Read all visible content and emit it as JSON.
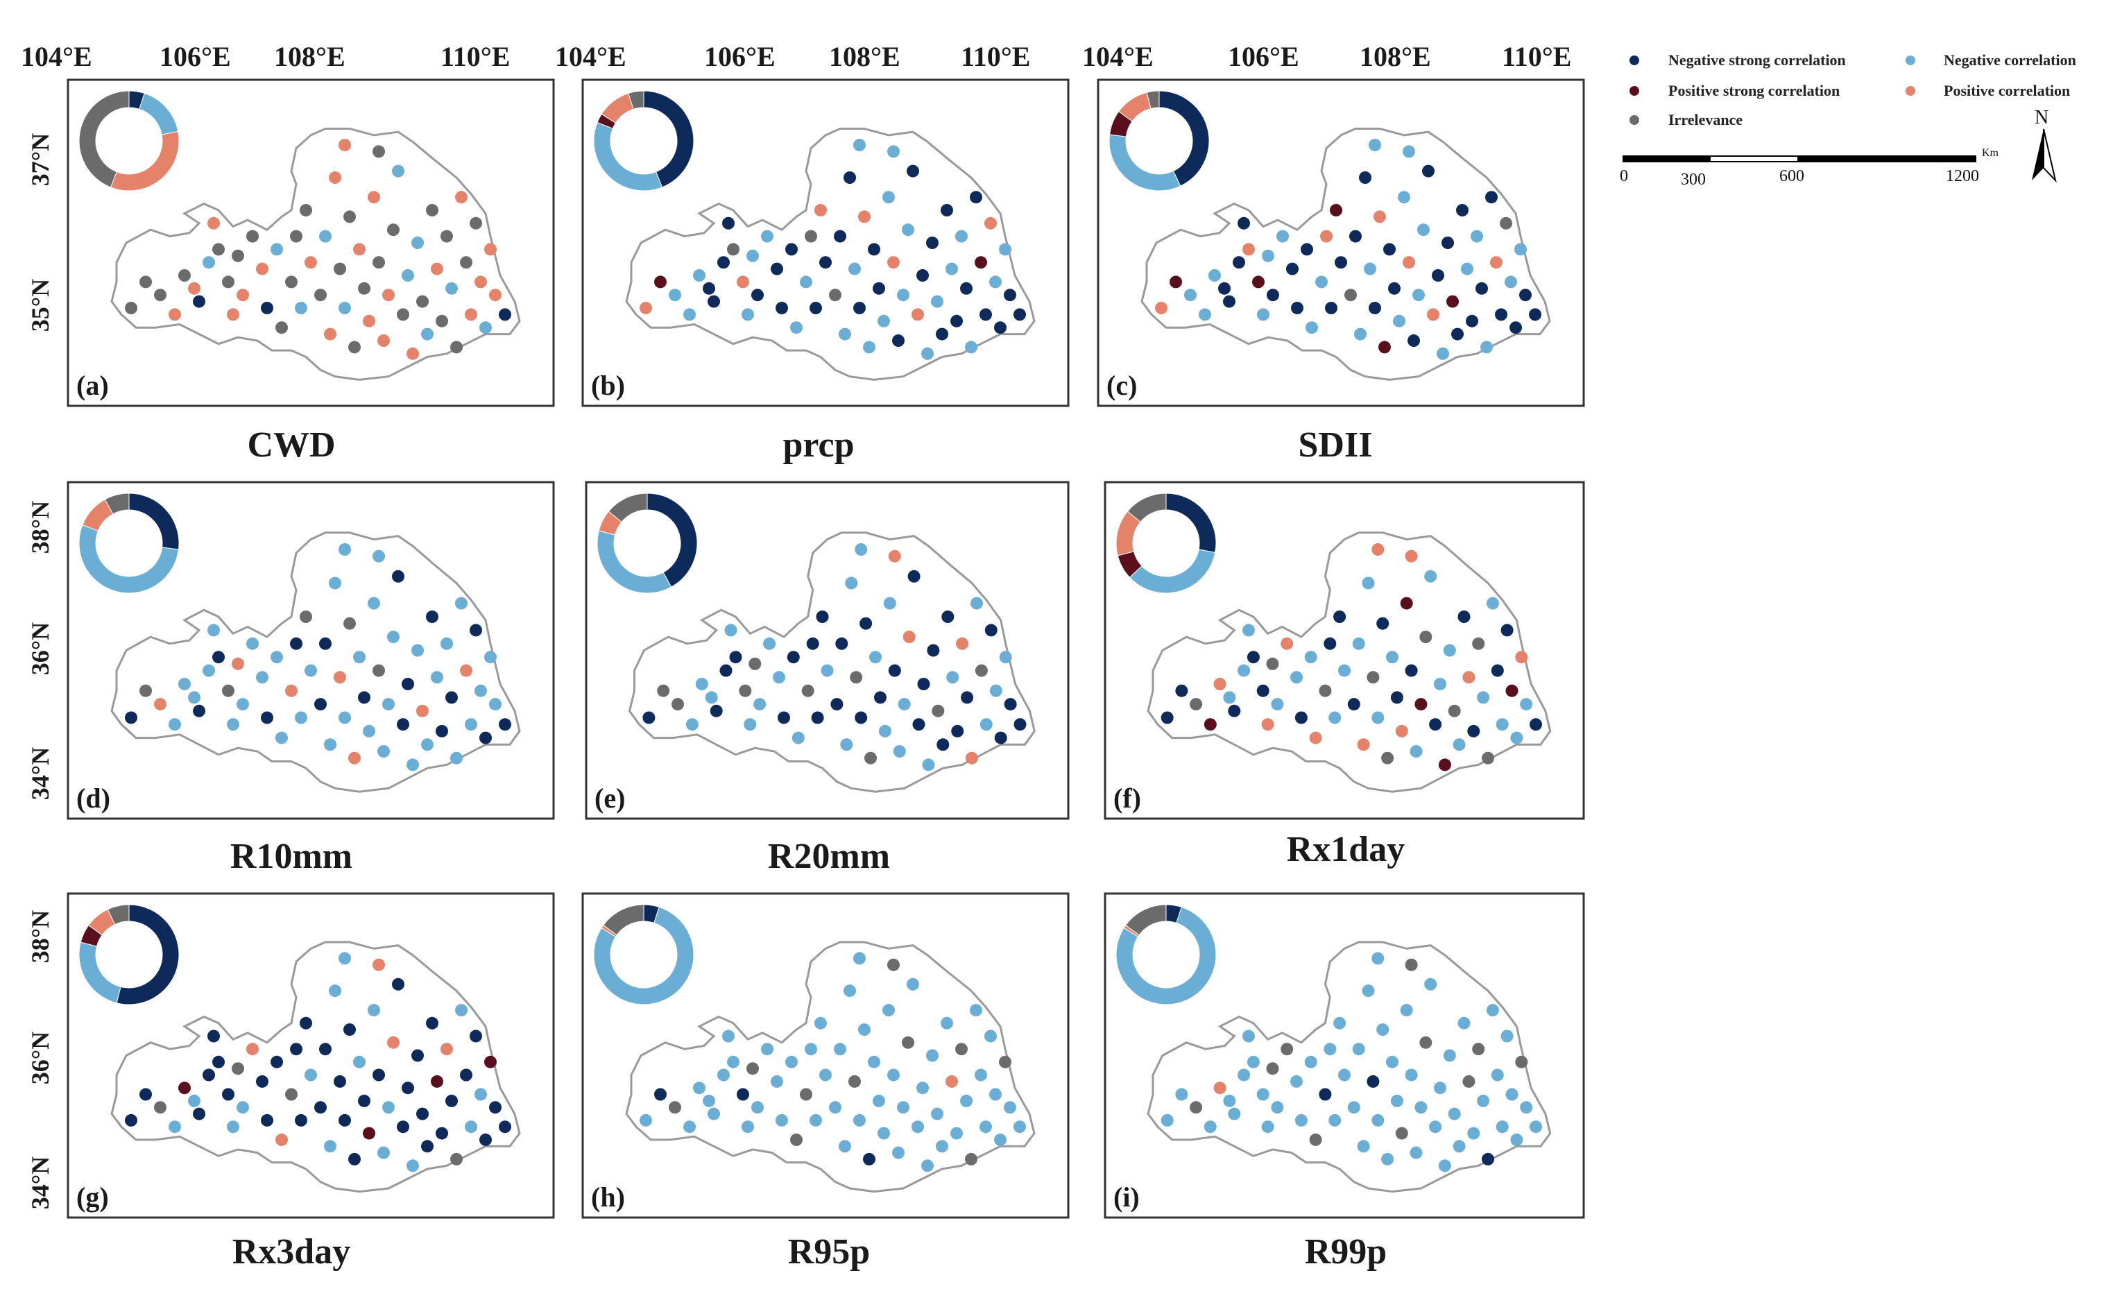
{
  "colors": {
    "negative_strong": "#0d2a5a",
    "negative": "#6aaed6",
    "positive_strong": "#5a0f1c",
    "positive": "#e5826a",
    "irrelevance": "#6b6b6b",
    "frame": "#333333",
    "boundary": "#999999"
  },
  "legend": {
    "items": [
      {
        "key": "negative_strong",
        "label": "Negative strong correlation"
      },
      {
        "key": "negative",
        "label": "Negative correlation"
      },
      {
        "key": "positive_strong",
        "label": "Positive strong correlation"
      },
      {
        "key": "positive",
        "label": "Positive correlation"
      },
      {
        "key": "irrelevance",
        "label": "Irrelevance"
      }
    ]
  },
  "scale_bar": {
    "unit": "Km",
    "ticks": [
      "0",
      "300",
      "600",
      "1200"
    ]
  },
  "north_arrow": {
    "label": "N"
  },
  "axes": {
    "lon_labels": [
      "104°E",
      "106°E",
      "108°E",
      "110°E"
    ],
    "lat_labels_row1": [
      "37°N",
      "35°N"
    ],
    "lat_labels_rows23": [
      "38°N",
      "36°N",
      "34°N"
    ]
  },
  "panels": [
    {
      "letter": "(a)",
      "title": "CWD",
      "donut": {
        "negative_strong": 5,
        "negative": 17,
        "positive_strong": 0,
        "positive": 34,
        "irrelevance": 44
      }
    },
    {
      "letter": "(b)",
      "title": "prcp",
      "donut": {
        "negative_strong": 44,
        "negative": 37,
        "positive_strong": 3,
        "positive": 11,
        "irrelevance": 5
      }
    },
    {
      "letter": "(c)",
      "title": "SDII",
      "donut": {
        "negative_strong": 43,
        "negative": 34,
        "positive_strong": 8,
        "positive": 11,
        "irrelevance": 4
      }
    },
    {
      "letter": "(d)",
      "title": "R10mm",
      "donut": {
        "negative_strong": 27,
        "negative": 54,
        "positive_strong": 0,
        "positive": 11,
        "irrelevance": 8
      }
    },
    {
      "letter": "(e)",
      "title": "R20mm",
      "donut": {
        "negative_strong": 42,
        "negative": 37,
        "positive_strong": 0,
        "positive": 7,
        "irrelevance": 14
      }
    },
    {
      "letter": "(f)",
      "title": "Rx1day",
      "donut": {
        "negative_strong": 28,
        "negative": 35,
        "positive_strong": 8,
        "positive": 15,
        "irrelevance": 14
      }
    },
    {
      "letter": "(g)",
      "title": "Rx3day",
      "donut": {
        "negative_strong": 54,
        "negative": 25,
        "positive_strong": 6,
        "positive": 8,
        "irrelevance": 7
      }
    },
    {
      "letter": "(h)",
      "title": "R95p",
      "donut": {
        "negative_strong": 5,
        "negative": 79,
        "positive_strong": 0,
        "positive": 1,
        "irrelevance": 15
      }
    },
    {
      "letter": "(i)",
      "title": "R99p",
      "donut": {
        "negative_strong": 5,
        "negative": 79,
        "positive_strong": 0,
        "positive": 1,
        "irrelevance": 15
      }
    }
  ]
}
